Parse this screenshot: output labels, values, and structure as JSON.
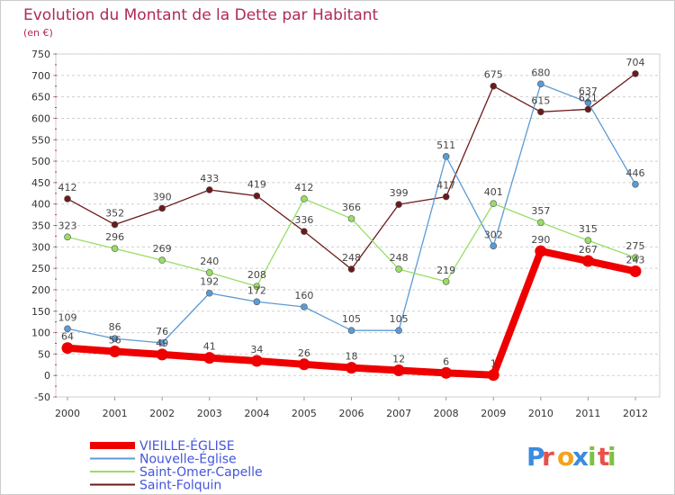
{
  "chart_data": {
    "type": "line",
    "title": "Evolution du Montant de la Dette par Habitant",
    "subtitle": "(en €)",
    "x": [
      "2000",
      "2001",
      "2002",
      "2003",
      "2004",
      "2005",
      "2006",
      "2007",
      "2008",
      "2009",
      "2010",
      "2011",
      "2012"
    ],
    "ylim": [
      -50,
      750
    ],
    "yticks": [
      -50,
      0,
      50,
      100,
      150,
      200,
      250,
      300,
      350,
      400,
      450,
      500,
      550,
      600,
      650,
      700,
      750
    ],
    "grid": "horizontal-dashed",
    "legend_position": "bottom-left",
    "series": [
      {
        "name": "VIEILLE-ÉGLISE",
        "color": "#ee0000",
        "values": [
          64,
          56,
          49,
          41,
          34,
          26,
          18,
          12,
          6,
          1,
          290,
          267,
          243
        ],
        "labels": [
          "64",
          "56",
          "49",
          "41",
          "34",
          "26",
          "18",
          "12",
          "6",
          "1",
          "290",
          "267",
          "243"
        ]
      },
      {
        "name": "Nouvelle-Église",
        "color": "#5b9bd5",
        "values": [
          109,
          86,
          76,
          192,
          172,
          160,
          105,
          105,
          511,
          302,
          680,
          637,
          446
        ],
        "labels": [
          "109",
          "86",
          "76",
          "192",
          "172",
          "160",
          "105",
          "105",
          "511",
          "302",
          "680",
          "637",
          "446"
        ]
      },
      {
        "name": "Saint-Omer-Capelle",
        "color": "#99dd66",
        "values": [
          323,
          296,
          269,
          240,
          208,
          412,
          366,
          248,
          219,
          401,
          357,
          315,
          275
        ],
        "labels": [
          "323",
          "296",
          "269",
          "240",
          "208",
          "412",
          "366",
          "248",
          "219",
          "401",
          "357",
          "315",
          "275"
        ]
      },
      {
        "name": "Saint-Folquin",
        "color": "#6b1a1a",
        "values": [
          412,
          352,
          390,
          433,
          419,
          336,
          248,
          399,
          417,
          675,
          615,
          621,
          704
        ],
        "labels": [
          "412",
          "352",
          "390",
          "433",
          "419",
          "336",
          "248",
          "399",
          "417",
          "675",
          "615",
          "621",
          "704"
        ]
      }
    ]
  },
  "logo": {
    "text": "Proxiti"
  },
  "colors": {
    "title": "#b0285a",
    "legend_text": "#4455dd"
  }
}
